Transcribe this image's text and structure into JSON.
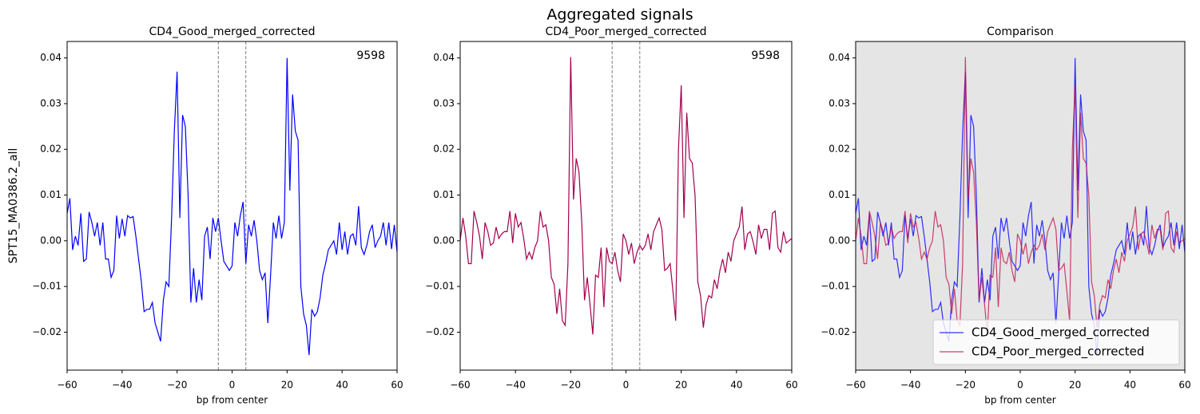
{
  "title": "Aggregated signals",
  "chart_data": [
    {
      "type": "line",
      "title": "CD4_Good_merged_corrected",
      "x_label": "bp from center",
      "y_label": "SPT15_MA0386.2_all",
      "annotation": "9598",
      "xlim": [
        -60,
        60
      ],
      "ylim": [
        -0.0283,
        0.0436
      ],
      "xticks": [
        {
          "value": -60,
          "label": "−60"
        },
        {
          "value": -40,
          "label": "−40"
        },
        {
          "value": -20,
          "label": "−20"
        },
        0,
        20,
        40,
        60
      ],
      "yticks": [
        {
          "value": -0.02,
          "label": "−0.02"
        },
        {
          "value": -0.01,
          "label": "−0.01"
        },
        {
          "value": 0,
          "label": "0.00"
        },
        0.01,
        0.02,
        0.03,
        0.04
      ],
      "vlines": [
        -5,
        5
      ],
      "vline_color": "#808080",
      "facecolor": "#ffffff",
      "x": [
        -60,
        -59,
        -58,
        -57,
        -56,
        -55,
        -54,
        -53,
        -52,
        -51,
        -50,
        -49,
        -48,
        -47,
        -46,
        -45,
        -44,
        -43,
        -42,
        -41,
        -40,
        -39,
        -38,
        -37,
        -36,
        -35,
        -34,
        -33,
        -32,
        -31,
        -30,
        -29,
        -28,
        -27,
        -26,
        -25,
        -24,
        -23,
        -22,
        -21,
        -20,
        -19,
        -18,
        -17,
        -16,
        -15,
        -14,
        -13,
        -12,
        -11,
        -10,
        -9,
        -8,
        -7,
        -6,
        -5,
        -4,
        -3,
        -2,
        -1,
        0,
        1,
        2,
        3,
        4,
        5,
        6,
        7,
        8,
        9,
        10,
        11,
        12,
        13,
        14,
        15,
        16,
        17,
        18,
        19,
        20,
        21,
        22,
        23,
        24,
        25,
        26,
        27,
        28,
        29,
        30,
        31,
        32,
        33,
        34,
        35,
        36,
        37,
        38,
        39,
        40,
        41,
        42,
        43,
        44,
        45,
        46,
        47,
        48,
        49,
        50,
        51,
        52,
        53,
        54,
        55,
        56,
        57,
        58,
        59,
        60
      ],
      "series": [
        {
          "name": "CD4_Good_merged_corrected",
          "color": "#0000ff",
          "values": [
            0.006,
            0.0093,
            -0.002,
            0.001,
            -0.001,
            0.006,
            -0.0045,
            -0.004,
            0.0063,
            0.004,
            0.001,
            0.004,
            -0.001,
            0.004,
            -0.004,
            -0.004,
            -0.008,
            -0.0065,
            0.0055,
            0.0005,
            0.0048,
            0.001,
            0.0055,
            0.005,
            0.0053,
            0.001,
            -0.004,
            -0.009,
            -0.0155,
            -0.015,
            -0.015,
            -0.0135,
            -0.018,
            -0.02,
            -0.022,
            -0.013,
            -0.009,
            -0.01,
            0.005,
            0.024,
            0.037,
            0.005,
            0.0275,
            0.025,
            0.01,
            -0.0135,
            -0.006,
            -0.0135,
            -0.0085,
            -0.013,
            0.001,
            0.003,
            -0.004,
            0.005,
            0.002,
            0.005,
            0.0,
            -0.0045,
            -0.0055,
            -0.0065,
            -0.0055,
            0.004,
            0.001,
            0.0055,
            0.0085,
            -0.005,
            0.0035,
            0.001,
            0.0045,
            0.0,
            -0.0065,
            -0.0085,
            -0.007,
            -0.018,
            -0.0075,
            0.004,
            0.0005,
            0.0055,
            0.0005,
            0.004,
            0.04,
            0.011,
            0.032,
            0.024,
            0.022,
            -0.01,
            -0.016,
            -0.0185,
            -0.025,
            -0.015,
            -0.0165,
            -0.0155,
            -0.0125,
            -0.0075,
            -0.005,
            -0.002,
            -0.001,
            0.0,
            -0.003,
            0.004,
            -0.002,
            0.002,
            -0.003,
            0.001,
            0.0015,
            -0.001,
            0.0076,
            -0.0015,
            -0.003,
            -0.001,
            0.002,
            0.0035,
            -0.0015,
            0.0,
            0.001,
            0.004,
            -0.001,
            0.004,
            -0.0018,
            0.0035,
            -0.0025
          ]
        }
      ]
    },
    {
      "type": "line",
      "title": "CD4_Poor_merged_corrected",
      "annotation": "9598",
      "xlim": [
        -60,
        60
      ],
      "ylim": [
        -0.0283,
        0.0436
      ],
      "xticks": [
        {
          "value": -60,
          "label": "−60"
        },
        {
          "value": -40,
          "label": "−40"
        },
        {
          "value": -20,
          "label": "−20"
        },
        0,
        20,
        40,
        60
      ],
      "yticks": [
        {
          "value": -0.02,
          "label": "−0.02"
        },
        {
          "value": -0.01,
          "label": "−0.01"
        },
        {
          "value": 0,
          "label": "0.00"
        },
        0.01,
        0.02,
        0.03,
        0.04
      ],
      "vlines": [
        -5,
        5
      ],
      "vline_color": "#808080",
      "facecolor": "#ffffff",
      "x": [
        -60,
        -59,
        -58,
        -57,
        -56,
        -55,
        -54,
        -53,
        -52,
        -51,
        -50,
        -49,
        -48,
        -47,
        -46,
        -45,
        -44,
        -43,
        -42,
        -41,
        -40,
        -39,
        -38,
        -37,
        -36,
        -35,
        -34,
        -33,
        -32,
        -31,
        -30,
        -29,
        -28,
        -27,
        -26,
        -25,
        -24,
        -23,
        -22,
        -21,
        -20,
        -19,
        -18,
        -17,
        -16,
        -15,
        -14,
        -13,
        -12,
        -11,
        -10,
        -9,
        -8,
        -7,
        -6,
        -5,
        -4,
        -3,
        -2,
        -1,
        0,
        1,
        2,
        3,
        4,
        5,
        6,
        7,
        8,
        9,
        10,
        11,
        12,
        13,
        14,
        15,
        16,
        17,
        18,
        19,
        20,
        21,
        22,
        23,
        24,
        25,
        26,
        27,
        28,
        29,
        30,
        31,
        32,
        33,
        34,
        35,
        36,
        37,
        38,
        39,
        40,
        41,
        42,
        43,
        44,
        45,
        46,
        47,
        48,
        49,
        50,
        51,
        52,
        53,
        54,
        55,
        56,
        57,
        58,
        59,
        60
      ],
      "series": [
        {
          "name": "CD4_Poor_merged_corrected",
          "color": "#a3004f",
          "values": [
            0.0,
            0.005,
            0.001,
            -0.005,
            -0.005,
            0.0065,
            0.004,
            0.001,
            -0.004,
            0.004,
            0.002,
            -0.001,
            -0.0005,
            0.003,
            0.0005,
            0.0015,
            0.002,
            0.002,
            0.0065,
            -0.0005,
            0.006,
            0.003,
            0.004,
            0.0005,
            -0.004,
            -0.0025,
            -0.004,
            -0.0015,
            0.0,
            0.0065,
            0.003,
            0.0035,
            0.0,
            -0.008,
            -0.0095,
            -0.016,
            -0.0105,
            -0.0175,
            -0.0185,
            -0.005,
            0.0402,
            0.009,
            0.018,
            0.015,
            0.004,
            -0.013,
            -0.008,
            -0.014,
            -0.0205,
            -0.0075,
            -0.008,
            -0.0015,
            -0.0145,
            -0.0015,
            -0.0045,
            -0.005,
            -0.0025,
            -0.0065,
            -0.009,
            0.0015,
            0.0,
            -0.003,
            -0.0005,
            -0.005,
            -0.0025,
            -0.001,
            -0.002,
            -0.001,
            0.0015,
            -0.002,
            0.002,
            0.0035,
            0.005,
            0.0025,
            -0.0065,
            -0.006,
            -0.005,
            -0.011,
            -0.0175,
            0.02,
            0.034,
            0.005,
            0.028,
            0.018,
            0.017,
            0.01,
            -0.009,
            -0.012,
            -0.019,
            -0.014,
            -0.012,
            -0.0125,
            -0.0085,
            -0.0105,
            -0.0065,
            -0.004,
            -0.007,
            -0.0025,
            -0.0045,
            0.0,
            0.0015,
            0.003,
            0.0075,
            -0.002,
            0.0015,
            0.002,
            -0.0002,
            -0.003,
            0.0035,
            0.0005,
            0.0025,
            0.0025,
            -0.002,
            0.006,
            0.0065,
            -0.0015,
            -0.0025,
            0.002,
            -0.0005,
            0.0,
            0.0005
          ]
        }
      ]
    },
    {
      "type": "line",
      "title": "Comparison",
      "x_label": "bp from center",
      "xlim": [
        -60,
        60
      ],
      "ylim": [
        -0.0283,
        0.0436
      ],
      "xticks": [
        {
          "value": -60,
          "label": "−60"
        },
        {
          "value": -40,
          "label": "−40"
        },
        {
          "value": -20,
          "label": "−20"
        },
        0,
        20,
        40,
        60
      ],
      "yticks": [
        {
          "value": -0.02,
          "label": "−0.02"
        },
        {
          "value": -0.01,
          "label": "−0.01"
        },
        {
          "value": 0,
          "label": "0.00"
        },
        0.01,
        0.02,
        0.03,
        0.04
      ],
      "facecolor": "#e5e5e5",
      "line_opacity": 0.8,
      "legend": "lower right",
      "x": [
        -60,
        -59,
        -58,
        -57,
        -56,
        -55,
        -54,
        -53,
        -52,
        -51,
        -50,
        -49,
        -48,
        -47,
        -46,
        -45,
        -44,
        -43,
        -42,
        -41,
        -40,
        -39,
        -38,
        -37,
        -36,
        -35,
        -34,
        -33,
        -32,
        -31,
        -30,
        -29,
        -28,
        -27,
        -26,
        -25,
        -24,
        -23,
        -22,
        -21,
        -20,
        -19,
        -18,
        -17,
        -16,
        -15,
        -14,
        -13,
        -12,
        -11,
        -10,
        -9,
        -8,
        -7,
        -6,
        -5,
        -4,
        -3,
        -2,
        -1,
        0,
        1,
        2,
        3,
        4,
        5,
        6,
        7,
        8,
        9,
        10,
        11,
        12,
        13,
        14,
        15,
        16,
        17,
        18,
        19,
        20,
        21,
        22,
        23,
        24,
        25,
        26,
        27,
        28,
        29,
        30,
        31,
        32,
        33,
        34,
        35,
        36,
        37,
        38,
        39,
        40,
        41,
        42,
        43,
        44,
        45,
        46,
        47,
        48,
        49,
        50,
        51,
        52,
        53,
        54,
        55,
        56,
        57,
        58,
        59,
        60
      ],
      "series": [
        {
          "name": "CD4_Good_merged_corrected",
          "color": "#0000ff",
          "values": [
            0.006,
            0.0093,
            -0.002,
            0.001,
            -0.001,
            0.006,
            -0.0045,
            -0.004,
            0.0063,
            0.004,
            0.001,
            0.004,
            -0.001,
            0.004,
            -0.004,
            -0.004,
            -0.008,
            -0.0065,
            0.0055,
            0.0005,
            0.0048,
            0.001,
            0.0055,
            0.005,
            0.0053,
            0.001,
            -0.004,
            -0.009,
            -0.0155,
            -0.015,
            -0.015,
            -0.0135,
            -0.018,
            -0.02,
            -0.022,
            -0.013,
            -0.009,
            -0.01,
            0.005,
            0.024,
            0.037,
            0.005,
            0.0275,
            0.025,
            0.01,
            -0.0135,
            -0.006,
            -0.0135,
            -0.0085,
            -0.013,
            0.001,
            0.003,
            -0.004,
            0.005,
            0.002,
            0.005,
            0.0,
            -0.0045,
            -0.0055,
            -0.0065,
            -0.0055,
            0.004,
            0.001,
            0.0055,
            0.0085,
            -0.005,
            0.0035,
            0.001,
            0.0045,
            0.0,
            -0.0065,
            -0.0085,
            -0.007,
            -0.018,
            -0.0075,
            0.004,
            0.0005,
            0.0055,
            0.0005,
            0.004,
            0.04,
            0.011,
            0.032,
            0.024,
            0.022,
            -0.01,
            -0.016,
            -0.0185,
            -0.025,
            -0.015,
            -0.0165,
            -0.0155,
            -0.0125,
            -0.0075,
            -0.005,
            -0.002,
            -0.001,
            0.0,
            -0.003,
            0.004,
            -0.002,
            0.002,
            -0.003,
            0.001,
            0.0015,
            -0.001,
            0.0076,
            -0.0015,
            -0.003,
            -0.001,
            0.002,
            0.0035,
            -0.0015,
            0.0,
            0.001,
            0.004,
            -0.001,
            0.004,
            -0.0018,
            0.0035,
            -0.0025
          ]
        },
        {
          "name": "CD4_Poor_merged_corrected",
          "color": "#c0144f",
          "values": [
            0.0,
            0.005,
            0.001,
            -0.005,
            -0.005,
            0.0065,
            0.004,
            0.001,
            -0.004,
            0.004,
            0.002,
            -0.001,
            -0.0005,
            0.003,
            0.0005,
            0.0015,
            0.002,
            0.002,
            0.0065,
            -0.0005,
            0.006,
            0.003,
            0.004,
            0.0005,
            -0.004,
            -0.0025,
            -0.004,
            -0.0015,
            0.0,
            0.0065,
            0.003,
            0.0035,
            0.0,
            -0.008,
            -0.0095,
            -0.016,
            -0.0105,
            -0.0175,
            -0.0185,
            -0.005,
            0.0402,
            0.009,
            0.018,
            0.015,
            0.004,
            -0.013,
            -0.008,
            -0.014,
            -0.0205,
            -0.0075,
            -0.008,
            -0.0015,
            -0.0145,
            -0.0015,
            -0.0045,
            -0.005,
            -0.0025,
            -0.0065,
            -0.009,
            0.0015,
            0.0,
            -0.003,
            -0.0005,
            -0.005,
            -0.0025,
            -0.001,
            -0.002,
            -0.001,
            0.0015,
            -0.002,
            0.002,
            0.0035,
            0.005,
            0.0025,
            -0.0065,
            -0.006,
            -0.005,
            -0.011,
            -0.0175,
            0.02,
            0.034,
            0.005,
            0.028,
            0.018,
            0.017,
            0.01,
            -0.009,
            -0.012,
            -0.019,
            -0.014,
            -0.012,
            -0.0125,
            -0.0085,
            -0.0105,
            -0.0065,
            -0.004,
            -0.007,
            -0.0025,
            -0.0045,
            0.0,
            0.0015,
            0.003,
            0.0075,
            -0.002,
            0.0015,
            0.002,
            -0.0002,
            -0.003,
            0.0035,
            0.0005,
            0.0025,
            0.0025,
            -0.002,
            0.006,
            0.0065,
            -0.0015,
            -0.0025,
            0.002,
            -0.0005,
            0.0,
            0.0005
          ]
        }
      ]
    }
  ]
}
